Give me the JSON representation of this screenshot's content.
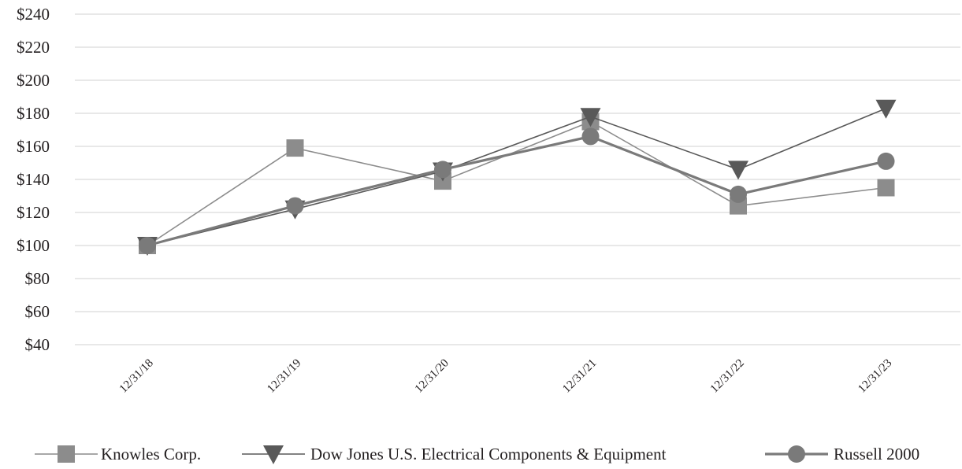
{
  "chart_data": {
    "type": "line",
    "title": "",
    "xlabel": "",
    "ylabel": "",
    "categories": [
      "12/31/18",
      "12/31/19",
      "12/31/20",
      "12/31/21",
      "12/31/22",
      "12/31/23"
    ],
    "ylim": [
      40,
      240
    ],
    "yticks": [
      40,
      60,
      80,
      100,
      120,
      140,
      160,
      180,
      200,
      220,
      240
    ],
    "ytick_labels": [
      "$40",
      "$60",
      "$80",
      "$100",
      "$120",
      "$140",
      "$160",
      "$180",
      "$200",
      "$220",
      "$240"
    ],
    "grid": true,
    "legend_position": "bottom",
    "series": [
      {
        "name": "Knowles Corp.",
        "marker": "square",
        "color": "#8c8c8c",
        "values": [
          100,
          159,
          139,
          175,
          124,
          135
        ]
      },
      {
        "name": "Dow Jones U.S. Electrical Components & Equipment",
        "marker": "triangle-down",
        "color": "#595959",
        "values": [
          100,
          122,
          145,
          178,
          146,
          183
        ]
      },
      {
        "name": "Russell 2000",
        "marker": "circle",
        "color": "#7a7a7a",
        "values": [
          100,
          124,
          146,
          166,
          131,
          151
        ]
      }
    ]
  }
}
